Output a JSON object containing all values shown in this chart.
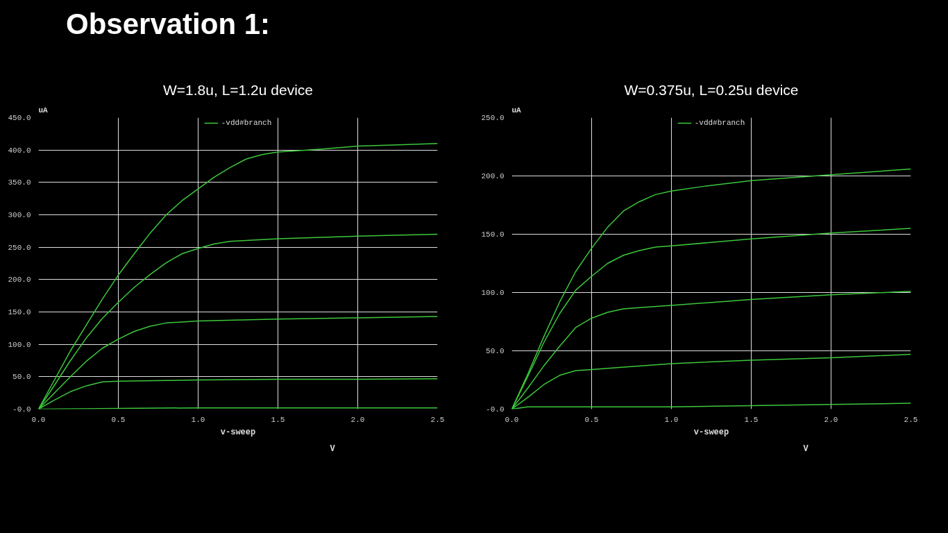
{
  "chart_data": [
    {
      "type": "line",
      "title": "Observation 1:",
      "subtitle": "W=1.8u, L=1.2u device",
      "xlabel": "v-sweep",
      "ylabel": "uA",
      "annotations": [
        "V"
      ],
      "xlim": [
        0,
        2.5
      ],
      "ylim": [
        0,
        450
      ],
      "xticks": [
        {
          "value": 0,
          "label": "0.0"
        },
        0.5,
        {
          "value": 1,
          "label": "1.0"
        },
        1.5,
        {
          "value": 2,
          "label": "2.0"
        },
        2.5
      ],
      "yticks": [
        {
          "value": 0,
          "label": "-0.0"
        },
        {
          "value": 50,
          "label": "50.0"
        },
        {
          "value": 100,
          "label": "100.0"
        },
        {
          "value": 150,
          "label": "150.0"
        },
        {
          "value": 200,
          "label": "200.0"
        },
        {
          "value": 250,
          "label": "250.0"
        },
        {
          "value": 300,
          "label": "300.0"
        },
        {
          "value": 350,
          "label": "350.0"
        },
        {
          "value": 400,
          "label": "400.0"
        },
        {
          "value": 450,
          "label": "450.0"
        }
      ],
      "grid": true,
      "legend": "top",
      "line_style": "solid",
      "marker": "none",
      "series": [
        {
          "name": "-vdd#branch",
          "color": "#3cc83c",
          "x": [
            0,
            0.1,
            0.2,
            0.3,
            0.4,
            0.5,
            0.6,
            0.7,
            0.8,
            0.9,
            1.0,
            1.1,
            1.2,
            1.3,
            1.4,
            1.5,
            1.75,
            2.0,
            2.25,
            2.5
          ],
          "values": [
            0,
            45,
            90,
            130,
            170,
            207,
            240,
            272,
            300,
            322,
            340,
            358,
            373,
            386,
            393,
            397,
            401,
            406,
            408,
            410
          ]
        },
        {
          "color": "#3cc83c",
          "x": [
            0,
            0.1,
            0.2,
            0.3,
            0.4,
            0.5,
            0.6,
            0.7,
            0.8,
            0.9,
            1.0,
            1.1,
            1.2,
            1.5,
            2.0,
            2.5
          ],
          "values": [
            0,
            37,
            75,
            110,
            140,
            165,
            188,
            208,
            226,
            240,
            248,
            255,
            259,
            263,
            267,
            270
          ]
        },
        {
          "color": "#3cc83c",
          "x": [
            0,
            0.1,
            0.2,
            0.3,
            0.4,
            0.5,
            0.6,
            0.7,
            0.8,
            1.0,
            1.5,
            2.0,
            2.5
          ],
          "values": [
            0,
            25,
            50,
            74,
            94,
            108,
            120,
            128,
            133,
            136,
            139,
            141,
            143
          ]
        },
        {
          "color": "#3cc83c",
          "x": [
            0,
            0.1,
            0.2,
            0.3,
            0.4,
            0.5,
            1.0,
            1.5,
            2.0,
            2.5
          ],
          "values": [
            0,
            14,
            27,
            36,
            42,
            43,
            45,
            46,
            46,
            47
          ]
        },
        {
          "color": "#3cc83c",
          "x": [
            0,
            0.5,
            1.0,
            2.5
          ],
          "values": [
            0,
            1,
            2,
            2
          ]
        }
      ]
    },
    {
      "type": "line",
      "subtitle": "W=0.375u, L=0.25u device",
      "xlabel": "v-sweep",
      "ylabel": "uA",
      "annotations": [
        "V"
      ],
      "xlim": [
        0,
        2.5
      ],
      "ylim": [
        0,
        250
      ],
      "xticks": [
        {
          "value": 0,
          "label": "0.0"
        },
        0.5,
        {
          "value": 1,
          "label": "1.0"
        },
        1.5,
        {
          "value": 2,
          "label": "2.0"
        },
        2.5
      ],
      "yticks": [
        {
          "value": 0,
          "label": "-0.0"
        },
        {
          "value": 50,
          "label": "50.0"
        },
        {
          "value": 100,
          "label": "100.0"
        },
        {
          "value": 150,
          "label": "150.0"
        },
        {
          "value": 200,
          "label": "200.0"
        },
        {
          "value": 250,
          "label": "250.0"
        }
      ],
      "grid": true,
      "legend": "top",
      "line_style": "solid",
      "marker": "none",
      "series": [
        {
          "name": "-vdd#branch",
          "color": "#3cc83c",
          "x": [
            0,
            0.1,
            0.2,
            0.3,
            0.4,
            0.5,
            0.6,
            0.7,
            0.8,
            0.9,
            1.0,
            1.2,
            1.5,
            2.0,
            2.5
          ],
          "values": [
            0,
            30,
            62,
            92,
            118,
            138,
            156,
            170,
            178,
            184,
            187,
            191,
            196,
            201,
            206
          ]
        },
        {
          "color": "#3cc83c",
          "x": [
            0,
            0.1,
            0.2,
            0.3,
            0.4,
            0.5,
            0.6,
            0.7,
            0.8,
            0.9,
            1.0,
            1.5,
            2.0,
            2.5
          ],
          "values": [
            0,
            28,
            57,
            82,
            102,
            114,
            125,
            132,
            136,
            139,
            140,
            146,
            151,
            155
          ]
        },
        {
          "color": "#3cc83c",
          "x": [
            0,
            0.1,
            0.2,
            0.3,
            0.4,
            0.5,
            0.6,
            0.7,
            0.8,
            1.0,
            1.5,
            2.0,
            2.5
          ],
          "values": [
            0,
            18,
            37,
            54,
            70,
            78,
            83,
            86,
            87,
            89,
            94,
            98,
            101
          ]
        },
        {
          "color": "#3cc83c",
          "x": [
            0,
            0.1,
            0.2,
            0.3,
            0.4,
            0.5,
            0.7,
            1.0,
            1.5,
            2.0,
            2.5
          ],
          "values": [
            0,
            10,
            21,
            29,
            33,
            34,
            36,
            39,
            42,
            44,
            47
          ]
        },
        {
          "color": "#3cc83c",
          "x": [
            0,
            0.1,
            0.5,
            1.0,
            1.5,
            2.0,
            2.5
          ],
          "values": [
            0,
            2,
            2,
            2,
            3,
            4,
            5
          ]
        }
      ]
    }
  ]
}
